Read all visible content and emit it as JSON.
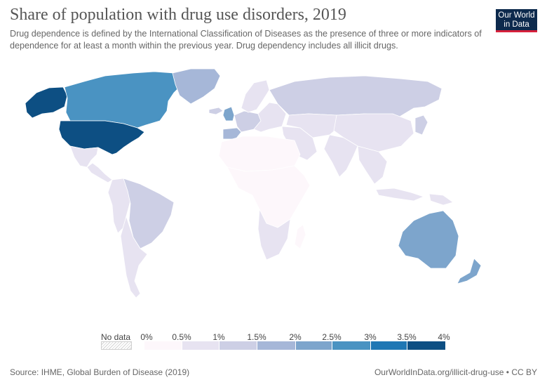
{
  "title": "Share of population with drug use disorders, 2019",
  "subtitle": "Drug dependence is defined by the International Classification of Diseases as the presence of three or more indicators of dependence for at least a month within the previous year. Drug dependency includes all illicit drugs.",
  "logo": {
    "line1": "Our World",
    "line2": "in Data",
    "bg_color": "#0d2a4d",
    "accent_color": "#d6203b"
  },
  "legend": {
    "no_data_label": "No data",
    "ticks": [
      "0%",
      "0.5%",
      "1%",
      "1.5%",
      "2%",
      "2.5%",
      "3%",
      "3.5%",
      "4%"
    ],
    "colors": [
      "#fdf7fb",
      "#e7e3f1",
      "#cdcfe5",
      "#a6b7d8",
      "#7da5cc",
      "#4a93c2",
      "#1f77b4",
      "#0d4f83"
    ]
  },
  "regions": [
    {
      "name": "United States",
      "bin": 7
    },
    {
      "name": "Alaska",
      "bin": 7
    },
    {
      "name": "Canada",
      "bin": 5
    },
    {
      "name": "Greenland",
      "bin": 3
    },
    {
      "name": "Mexico",
      "bin": 1
    },
    {
      "name": "Central America",
      "bin": 1
    },
    {
      "name": "Brazil",
      "bin": 2
    },
    {
      "name": "Western South America",
      "bin": 1
    },
    {
      "name": "Southern Cone",
      "bin": 1
    },
    {
      "name": "United Kingdom",
      "bin": 4
    },
    {
      "name": "Iberia",
      "bin": 3
    },
    {
      "name": "Western Europe",
      "bin": 2
    },
    {
      "name": "Scandinavia",
      "bin": 1
    },
    {
      "name": "Eastern Europe",
      "bin": 1
    },
    {
      "name": "Russia",
      "bin": 2
    },
    {
      "name": "Middle East",
      "bin": 1
    },
    {
      "name": "Central Asia",
      "bin": 1
    },
    {
      "name": "China",
      "bin": 1
    },
    {
      "name": "India",
      "bin": 1
    },
    {
      "name": "Southeast Asia",
      "bin": 1
    },
    {
      "name": "North Africa",
      "bin": 0
    },
    {
      "name": "Sub-Saharan Africa",
      "bin": 0
    },
    {
      "name": "Southern Africa",
      "bin": 1
    },
    {
      "name": "Madagascar",
      "bin": 0
    },
    {
      "name": "Japan",
      "bin": 2
    },
    {
      "name": "Indonesia",
      "bin": 1
    },
    {
      "name": "Papua New Guinea",
      "bin": 1
    },
    {
      "name": "Australia",
      "bin": 4
    },
    {
      "name": "New Zealand",
      "bin": 4
    },
    {
      "name": "Iceland",
      "bin": 2
    }
  ],
  "footer": {
    "source": "Source: IHME, Global Burden of Disease (2019)",
    "credit": "OurWorldInData.org/illicit-drug-use • CC BY"
  }
}
